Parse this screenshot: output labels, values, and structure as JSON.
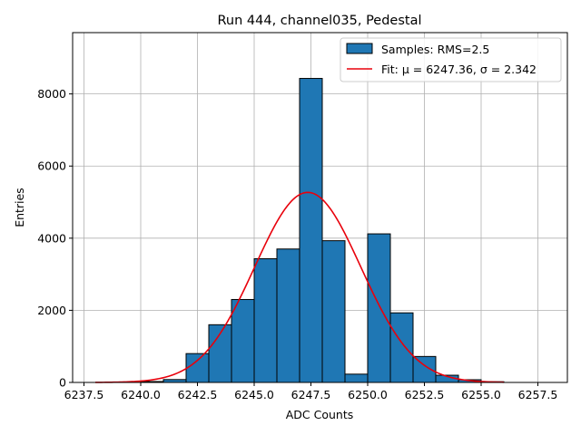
{
  "chart_data": {
    "type": "bar",
    "title": "Run 444, channel035, Pedestal",
    "xlabel": "ADC Counts",
    "ylabel": "Entries",
    "xlim": [
      6237.0,
      6258.8
    ],
    "ylim": [
      0,
      9700
    ],
    "grid": true,
    "legend_position": "top-right",
    "x_ticks": [
      6237.5,
      6240.0,
      6242.5,
      6245.0,
      6247.5,
      6250.0,
      6252.5,
      6255.0,
      6257.5
    ],
    "x_tick_labels": [
      "6237.5",
      "6240.0",
      "6242.5",
      "6245.0",
      "6247.5",
      "6250.0",
      "6252.5",
      "6255.0",
      "6257.5"
    ],
    "y_ticks": [
      0,
      2000,
      4000,
      6000,
      8000
    ],
    "y_tick_labels": [
      "0",
      "2000",
      "4000",
      "6000",
      "8000"
    ],
    "bin_width": 1.0,
    "bins": [
      {
        "left": 6240.0,
        "count": 25
      },
      {
        "left": 6241.0,
        "count": 80
      },
      {
        "left": 6242.0,
        "count": 800
      },
      {
        "left": 6243.0,
        "count": 1600
      },
      {
        "left": 6244.0,
        "count": 2300
      },
      {
        "left": 6245.0,
        "count": 3430
      },
      {
        "left": 6246.0,
        "count": 3700
      },
      {
        "left": 6247.0,
        "count": 8430
      },
      {
        "left": 6248.0,
        "count": 3930
      },
      {
        "left": 6249.0,
        "count": 230
      },
      {
        "left": 6250.0,
        "count": 4120
      },
      {
        "left": 6251.0,
        "count": 1930
      },
      {
        "left": 6252.0,
        "count": 720
      },
      {
        "left": 6253.0,
        "count": 200
      },
      {
        "left": 6254.0,
        "count": 75
      },
      {
        "left": 6255.0,
        "count": 20
      }
    ],
    "series": [
      {
        "name": "Samples: RMS=2.5",
        "kind": "histogram",
        "color": "#1f77b4"
      },
      {
        "name": "Fit: μ = 6247.36, σ = 2.342",
        "kind": "gaussian-fit",
        "color": "#e8000b",
        "mu": 6247.36,
        "sigma": 2.342,
        "amplitude": 5270,
        "x_range": [
          6238.0,
          6256.0
        ]
      }
    ]
  }
}
